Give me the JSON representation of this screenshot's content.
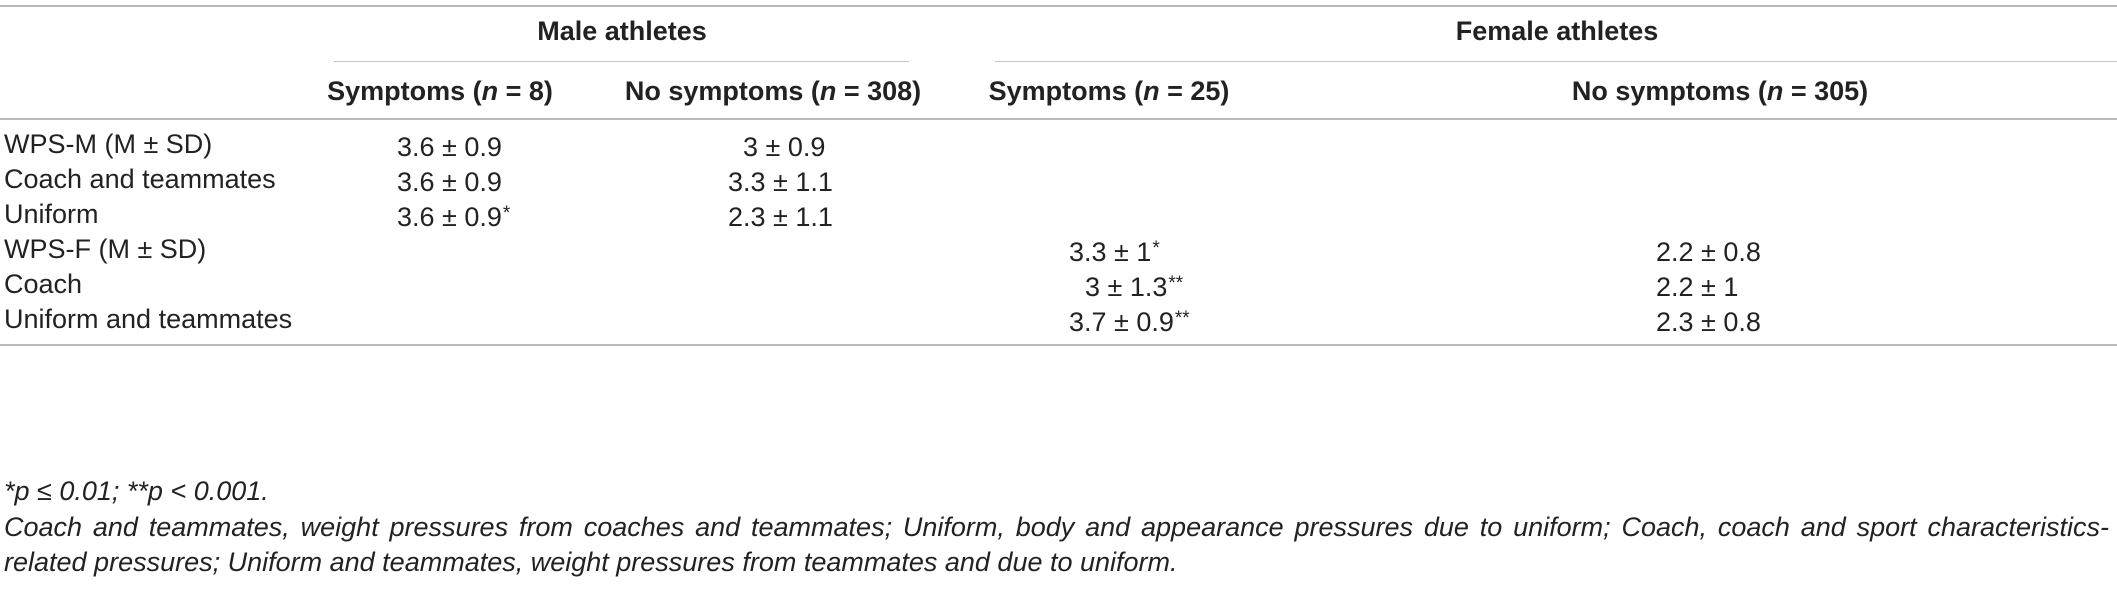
{
  "table": {
    "groups": [
      {
        "label": "Male athletes"
      },
      {
        "label": "Female athletes"
      }
    ],
    "columns": [
      {
        "prefix": "Symptoms (",
        "n_label": "n",
        "suffix": " = 8)"
      },
      {
        "prefix": "No symptoms (",
        "n_label": "n",
        "suffix": " = 308)"
      },
      {
        "prefix": "Symptoms (",
        "n_label": "n",
        "suffix": " = 25)"
      },
      {
        "prefix": "No symptoms (",
        "n_label": "n",
        "suffix": " = 305)"
      }
    ],
    "rows": [
      {
        "label": "WPS-M (M ± SD)",
        "cells": [
          {
            "v": "3.6 ± 0.9",
            "m": ""
          },
          {
            "v": "3 ± 0.9",
            "m": ""
          },
          {
            "v": "",
            "m": ""
          },
          {
            "v": "",
            "m": ""
          }
        ]
      },
      {
        "label": "Coach and teammates",
        "cells": [
          {
            "v": "3.6 ± 0.9",
            "m": ""
          },
          {
            "v": "3.3 ± 1.1",
            "m": ""
          },
          {
            "v": "",
            "m": ""
          },
          {
            "v": "",
            "m": ""
          }
        ]
      },
      {
        "label": "Uniform",
        "cells": [
          {
            "v": "3.6 ± 0.9",
            "m": "*"
          },
          {
            "v": "2.3 ± 1.1",
            "m": ""
          },
          {
            "v": "",
            "m": ""
          },
          {
            "v": "",
            "m": ""
          }
        ]
      },
      {
        "label": "WPS-F (M ± SD)",
        "cells": [
          {
            "v": "",
            "m": ""
          },
          {
            "v": "",
            "m": ""
          },
          {
            "v": "3.3 ± 1",
            "m": "*"
          },
          {
            "v": "2.2 ± 0.8",
            "m": ""
          }
        ]
      },
      {
        "label": "Coach",
        "cells": [
          {
            "v": "",
            "m": ""
          },
          {
            "v": "",
            "m": ""
          },
          {
            "v": "3 ± 1.3",
            "m": "**"
          },
          {
            "v": "2.2 ± 1",
            "m": ""
          }
        ]
      },
      {
        "label": "Uniform and teammates",
        "cells": [
          {
            "v": "",
            "m": ""
          },
          {
            "v": "",
            "m": ""
          },
          {
            "v": "3.7 ± 0.9",
            "m": "**"
          },
          {
            "v": "2.3 ± 0.8",
            "m": ""
          }
        ]
      }
    ]
  },
  "footnotes": {
    "significance": "*p ≤ 0.01; **p < 0.001.",
    "abbreviations": "Coach and teammates, weight pressures from coaches and teammates; Uniform, body and appearance pressures due to uniform; Coach, coach and sport characteristics-related pressures; Uniform and teammates, weight pressures from teammates and due to uniform."
  }
}
